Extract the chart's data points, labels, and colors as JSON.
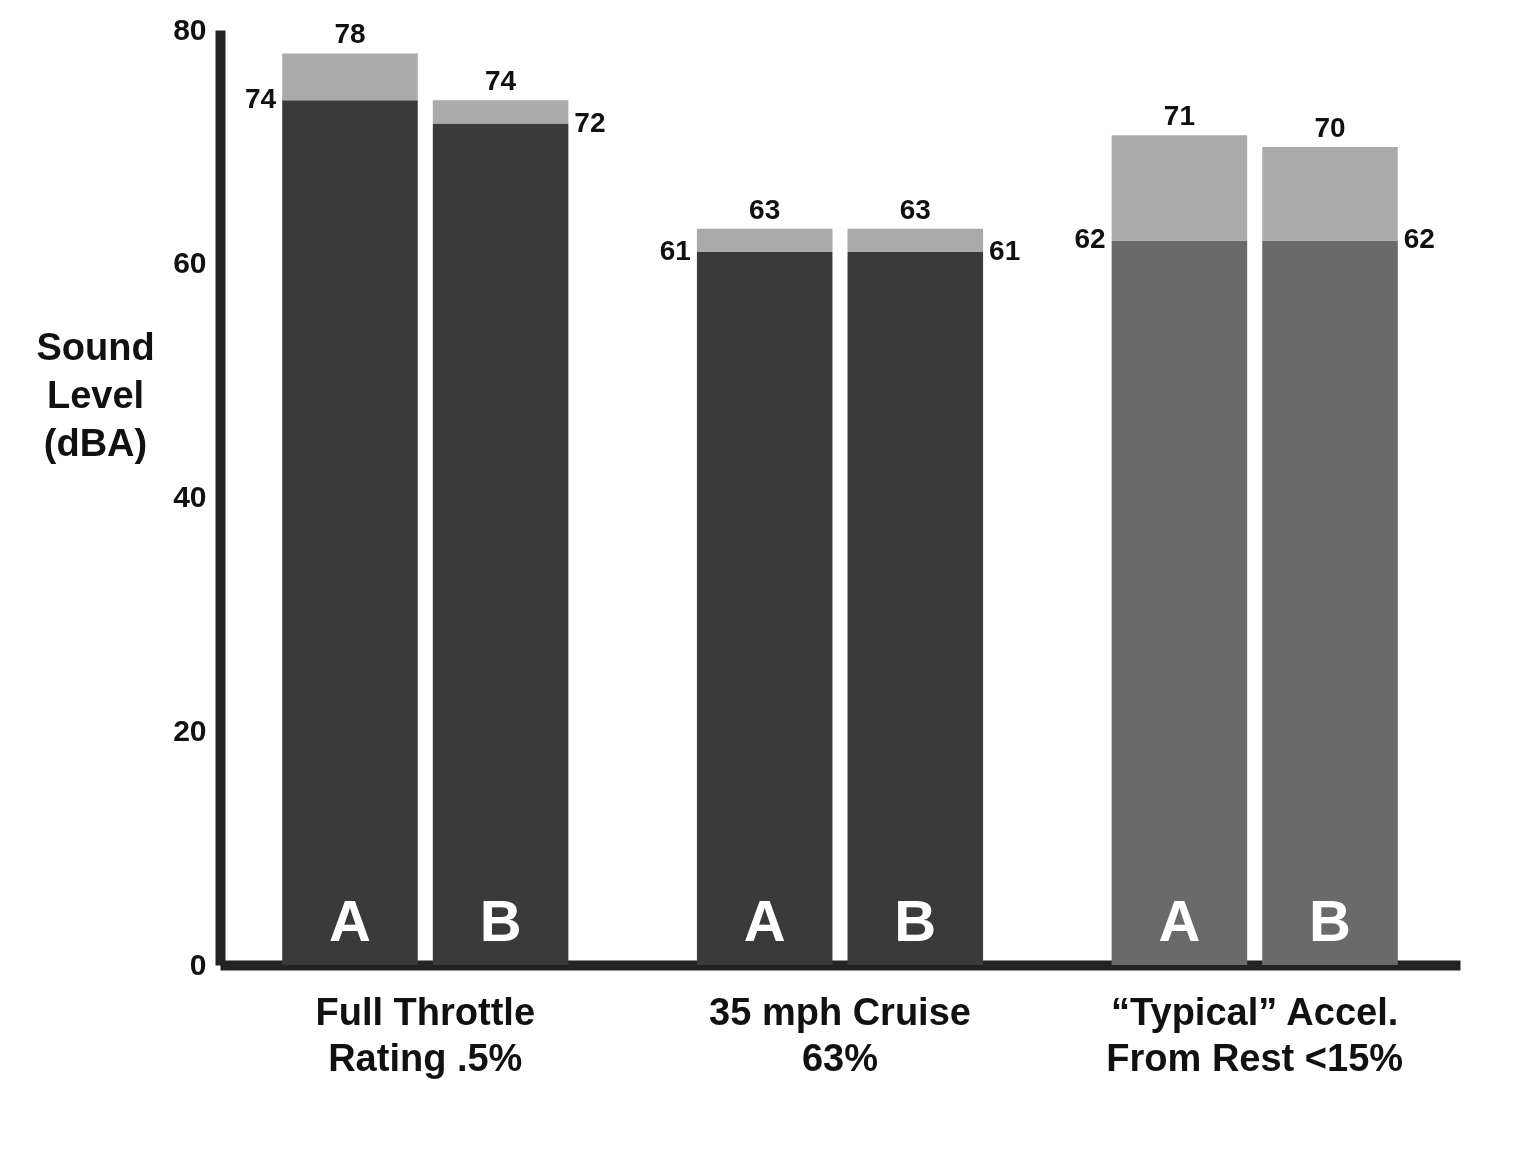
{
  "chart_data": {
    "type": "bar",
    "stacked": true,
    "ylabel": "Sound Level (dBA)",
    "categories": [
      "A",
      "B",
      "A",
      "B",
      "A",
      "B"
    ],
    "series": [
      {
        "colors": [
          "#3a3a3a",
          "#3a3a3a",
          "#3a3a3a",
          "#3a3a3a",
          "#6a6a6a",
          "#6a6a6a"
        ],
        "values": [
          74,
          72,
          61,
          61,
          62,
          62
        ],
        "value_labels": [
          "74",
          "72",
          "61",
          "61",
          "62",
          "62"
        ]
      },
      {
        "color": "#aaaaaa",
        "values": [
          4,
          2,
          2,
          2,
          9,
          8
        ]
      }
    ],
    "totals": [
      "78",
      "74",
      "63",
      "63",
      "71",
      "70"
    ],
    "ylim": [
      0,
      80
    ],
    "yticks": [
      0,
      20,
      40,
      60,
      80
    ],
    "grid": false,
    "annotations": [
      "Full Throttle Rating .5%",
      "35 mph Cruise 63%",
      "“Typical” Accel. From Rest <15%"
    ]
  }
}
